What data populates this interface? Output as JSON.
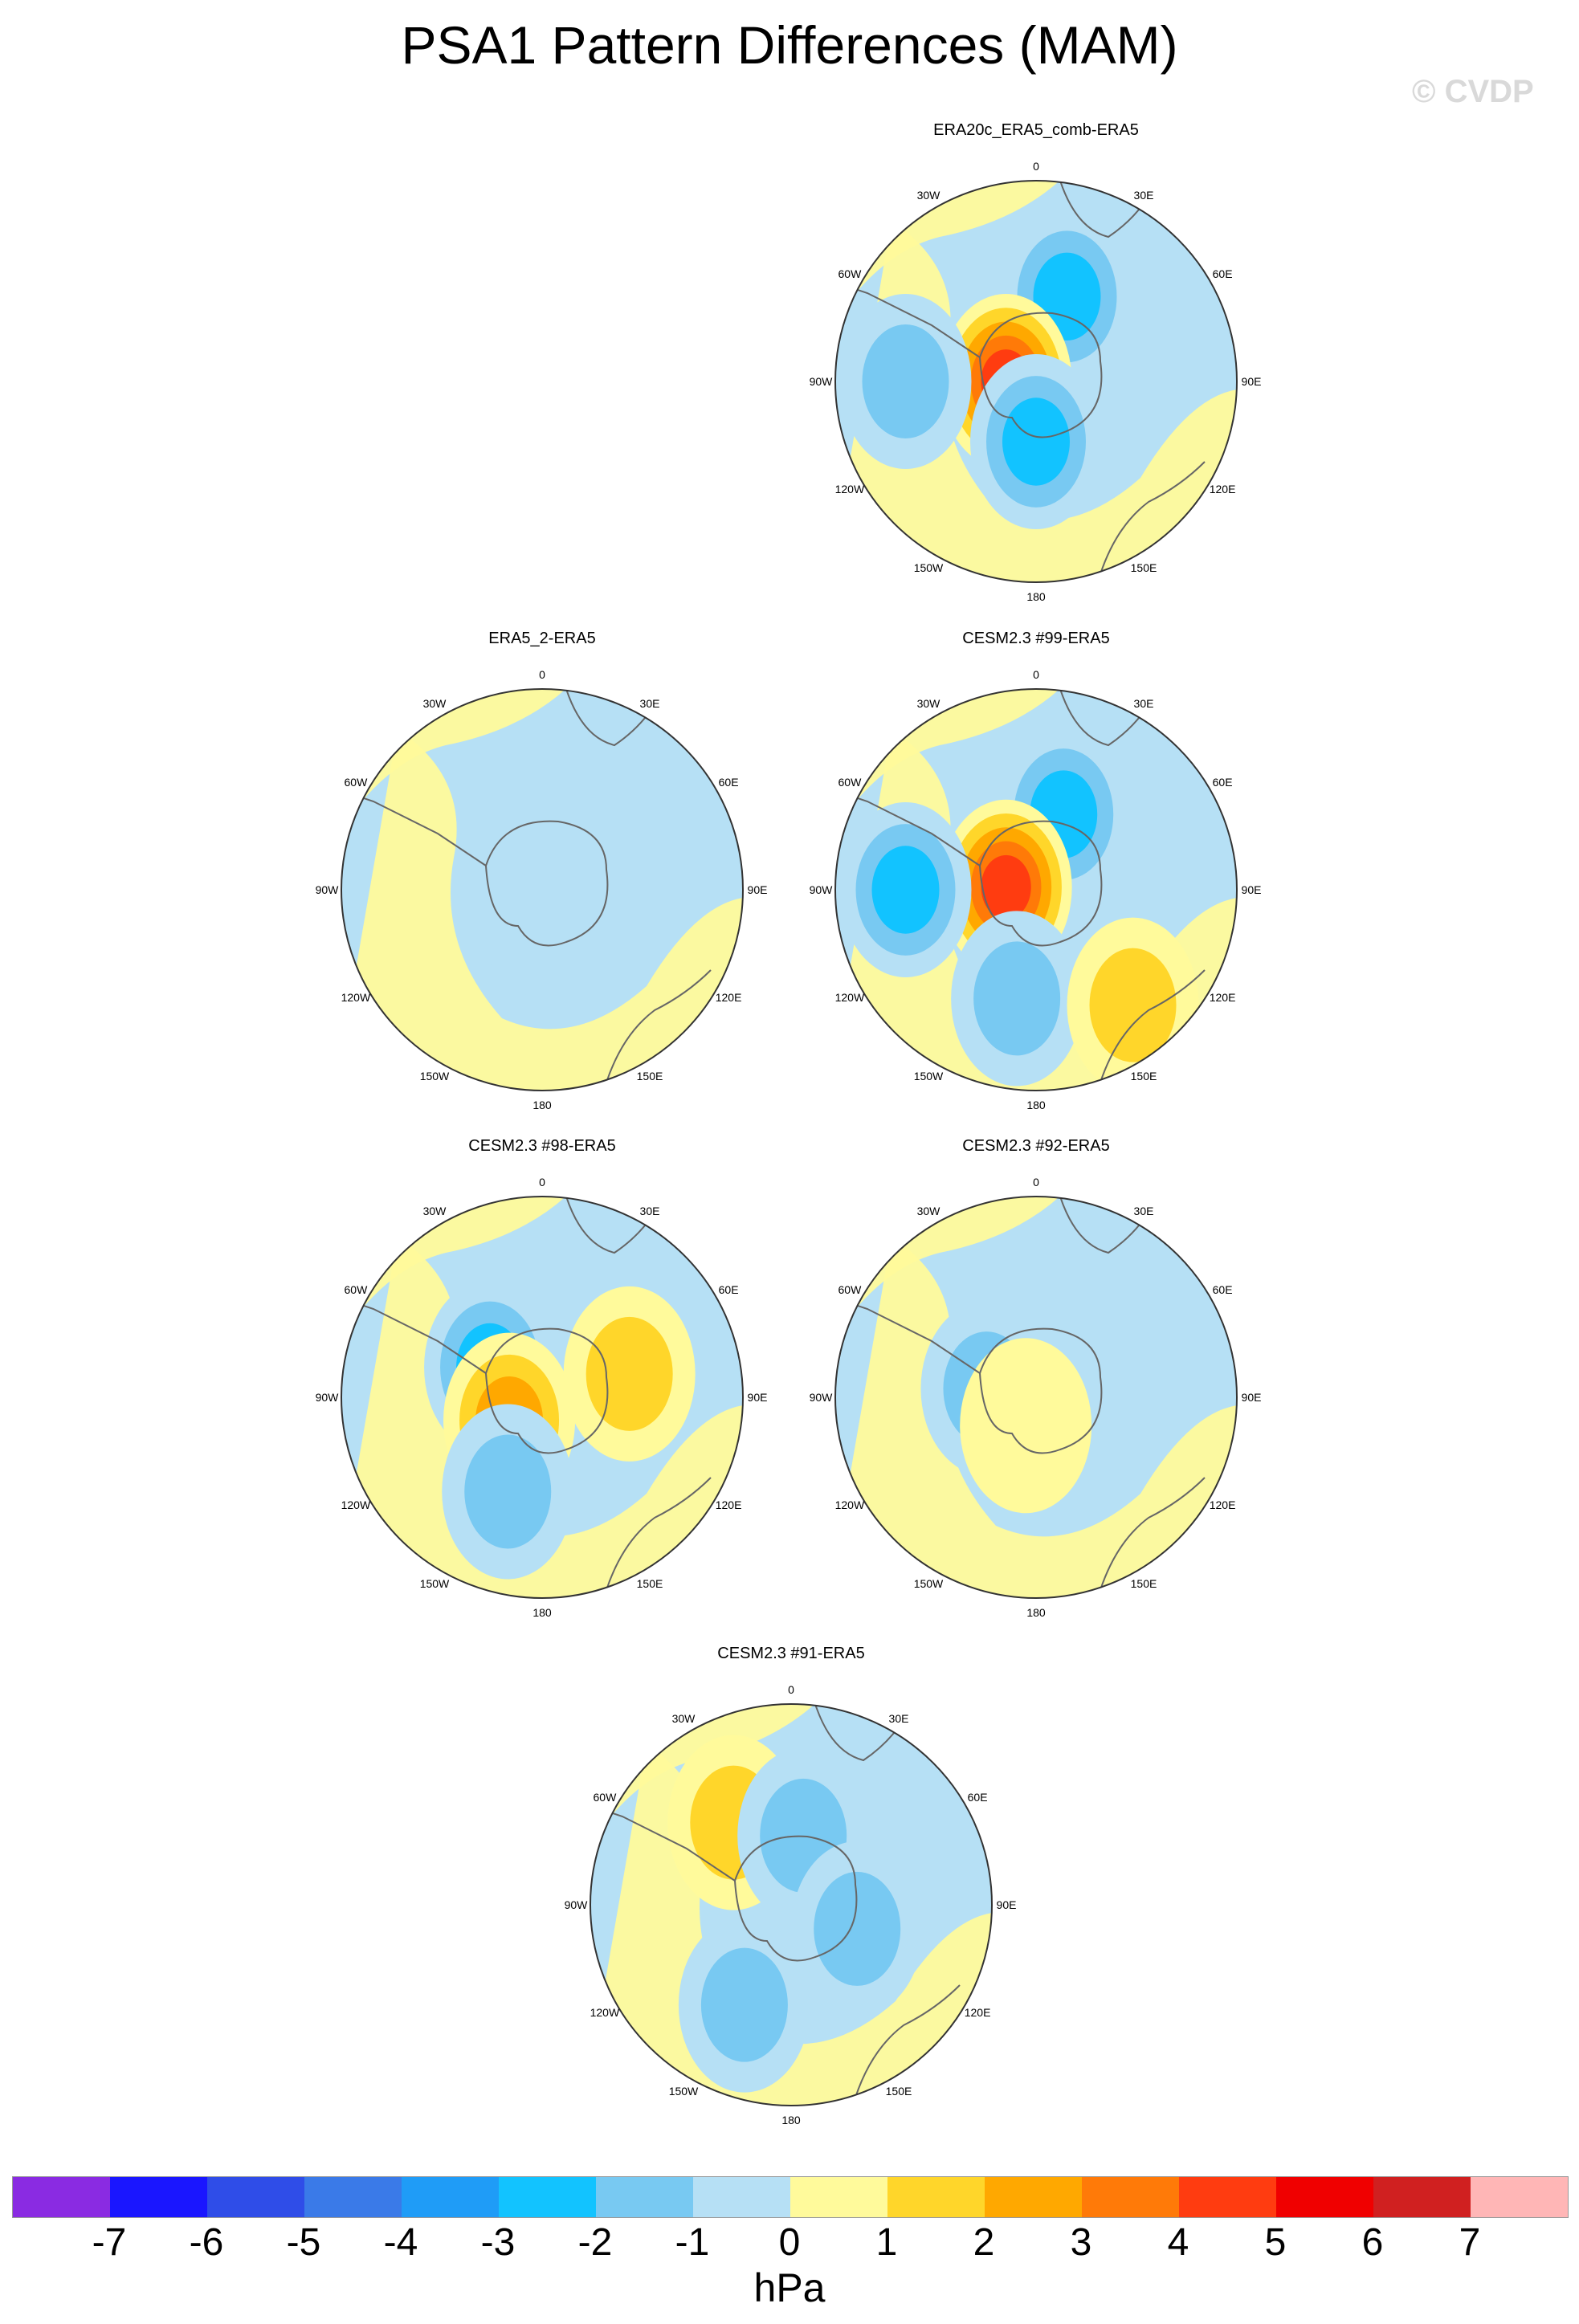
{
  "title": "PSA1 Pattern Differences (MAM)",
  "watermark": "© CVDP",
  "chart_data": {
    "type": "contour-map",
    "projection": "polar-stereographic-south",
    "units": "hPa",
    "colorbar": {
      "labels": [
        "-7",
        "-6",
        "-5",
        "-4",
        "-3",
        "-2",
        "-1",
        "0",
        "1",
        "2",
        "3",
        "4",
        "5",
        "6",
        "7"
      ],
      "colors": [
        "#8a2be2",
        "#1a16ff",
        "#2f4de8",
        "#3a7ae8",
        "#1f9cf7",
        "#12c3ff",
        "#78c9f2",
        "#b6e0f5",
        "#fffa9b",
        "#ffd62a",
        "#ffa800",
        "#ff7a08",
        "#ff3c10",
        "#f00000",
        "#d02020",
        "#ffb6b6"
      ]
    },
    "lon_labels": [
      "0",
      "30E",
      "60E",
      "90E",
      "120E",
      "150E",
      "180",
      "150W",
      "120W",
      "90W",
      "60W",
      "30W"
    ],
    "panels": [
      {
        "title": "ERA20c_ERA5_comb-ERA5",
        "anomalies": [
          {
            "value": -3,
            "lon": 20,
            "r": 0.45
          },
          {
            "value": 5,
            "lon": 270,
            "r": 0.15
          },
          {
            "value": -3,
            "lon": 180,
            "r": 0.3
          },
          {
            "value": -2,
            "lon": 270,
            "r": 0.65
          }
        ]
      },
      {
        "title": "ERA5_2-ERA5",
        "anomalies": [
          {
            "value": -1,
            "lon": 180,
            "r": 0.1
          }
        ]
      },
      {
        "title": "CESM2.3 #99-ERA5",
        "anomalies": [
          {
            "value": -3,
            "lon": 20,
            "r": 0.4
          },
          {
            "value": 5,
            "lon": 275,
            "r": 0.15
          },
          {
            "value": -3,
            "lon": 270,
            "r": 0.65
          },
          {
            "value": -2,
            "lon": 190,
            "r": 0.55
          },
          {
            "value": 2,
            "lon": 140,
            "r": 0.75
          }
        ]
      },
      {
        "title": "CESM2.3 #98-ERA5",
        "anomalies": [
          {
            "value": -3,
            "lon": 300,
            "r": 0.3
          },
          {
            "value": 3,
            "lon": 235,
            "r": 0.2
          },
          {
            "value": 2,
            "lon": 75,
            "r": 0.45
          },
          {
            "value": -2,
            "lon": 200,
            "r": 0.5
          }
        ]
      },
      {
        "title": "CESM2.3 #92-ERA5",
        "anomalies": [
          {
            "value": -2,
            "lon": 280,
            "r": 0.25
          },
          {
            "value": 1,
            "lon": 200,
            "r": 0.15
          }
        ]
      },
      {
        "title": "CESM2.3 #91-ERA5",
        "anomalies": [
          {
            "value": 2,
            "lon": 325,
            "r": 0.5
          },
          {
            "value": -2,
            "lon": 10,
            "r": 0.35
          },
          {
            "value": -2,
            "lon": 110,
            "r": 0.35
          },
          {
            "value": -2,
            "lon": 205,
            "r": 0.55
          }
        ]
      }
    ]
  }
}
